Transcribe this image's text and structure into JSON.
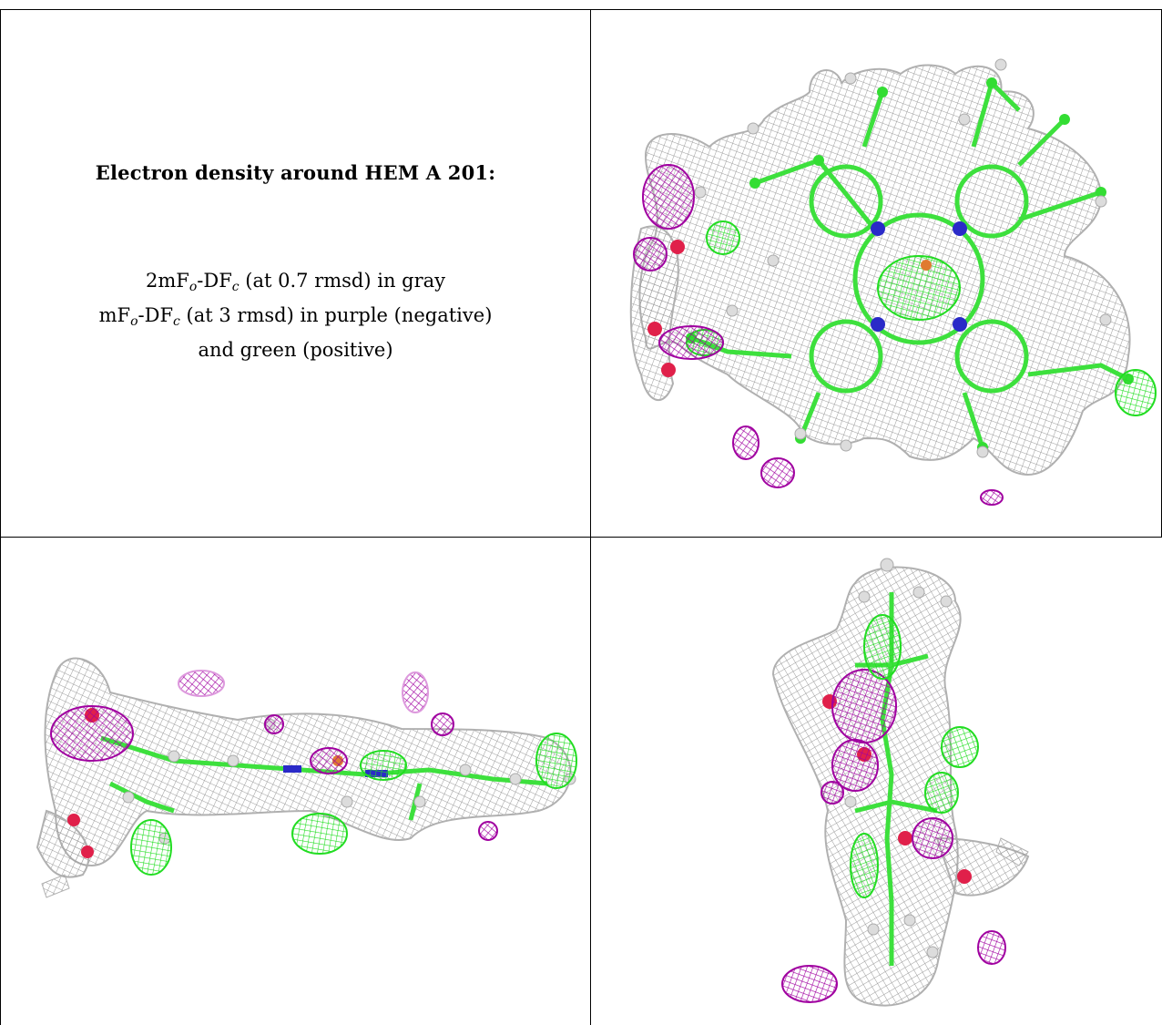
{
  "title": "Electron density around HEM A 201:",
  "legend": {
    "line1": {
      "a": "2mF",
      "o": "o",
      "b": "-DF",
      "c": "c",
      "rest": " (at 0.7 rmsd) in gray"
    },
    "line2": {
      "a": "mF",
      "o": "o",
      "b": "-DF",
      "c": "c",
      "rest": " (at 3 rmsd) in purple (negative)"
    },
    "line3": "and green (positive)"
  },
  "colors": {
    "mesh_gray": "#a8a8a8",
    "negative_purple": "#a000a0",
    "positive_green": "#22ee22",
    "nitrogen_blue": "#2a2ac8",
    "oxygen_red": "#e0204a",
    "iron_orange": "#e07a30",
    "hydrogen_white": "#dcdcdc"
  },
  "panels": {
    "top_right": "heme-face-on-view",
    "bottom_left": "heme-edge-on-horizontal-view",
    "bottom_right": "heme-edge-on-vertical-view"
  }
}
